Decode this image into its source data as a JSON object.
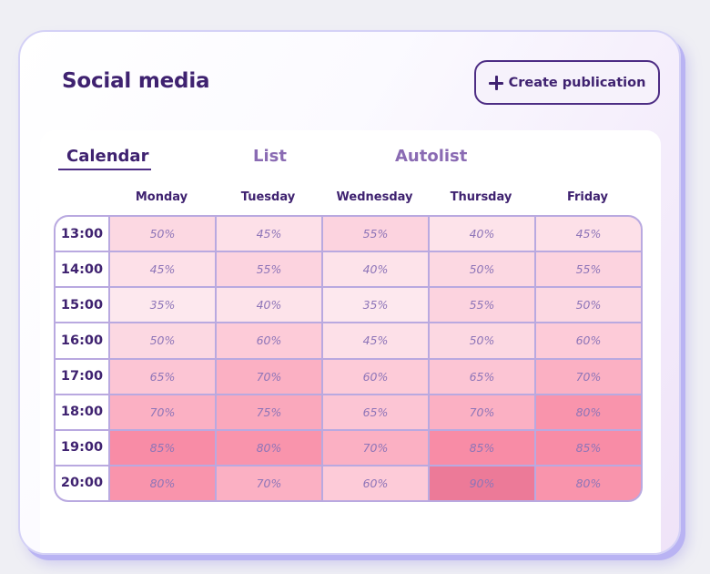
{
  "header": {
    "title": "Social media",
    "create_button_label": "Create publication",
    "create_button_icon": "plus-icon"
  },
  "tabs": [
    {
      "label": "Calendar",
      "active": true
    },
    {
      "label": "List",
      "active": false
    },
    {
      "label": "Autolist",
      "active": false
    }
  ],
  "calendar": {
    "days": [
      "Monday",
      "Tuesday",
      "Wednesday",
      "Thursday",
      "Friday"
    ],
    "rows": [
      {
        "time": "13:00",
        "values": [
          "50%",
          "45%",
          "55%",
          "40%",
          "45%"
        ]
      },
      {
        "time": "14:00",
        "values": [
          "45%",
          "55%",
          "40%",
          "50%",
          "55%"
        ]
      },
      {
        "time": "15:00",
        "values": [
          "35%",
          "40%",
          "35%",
          "55%",
          "50%"
        ]
      },
      {
        "time": "16:00",
        "values": [
          "50%",
          "60%",
          "45%",
          "50%",
          "60%"
        ]
      },
      {
        "time": "17:00",
        "values": [
          "65%",
          "70%",
          "60%",
          "65%",
          "70%"
        ]
      },
      {
        "time": "18:00",
        "values": [
          "70%",
          "75%",
          "65%",
          "70%",
          "80%"
        ]
      },
      {
        "time": "19:00",
        "values": [
          "85%",
          "80%",
          "70%",
          "85%",
          "85%"
        ]
      },
      {
        "time": "20:00",
        "values": [
          "80%",
          "70%",
          "60%",
          "90%",
          "80%"
        ]
      }
    ]
  },
  "colors": {
    "accent": "#3f2270",
    "grid_border": "#b9a9e0",
    "heat_scale": {
      "35": "#fde8ee",
      "40": "#fde3ea",
      "45": "#fde0e8",
      "50": "#fcd8e2",
      "55": "#fcd3df",
      "60": "#fdcbd8",
      "65": "#fcc5d4",
      "70": "#fbb0c3",
      "75": "#faa8bc",
      "80": "#f994ac",
      "85": "#f88ca6",
      "90": "#ec7a98"
    }
  }
}
